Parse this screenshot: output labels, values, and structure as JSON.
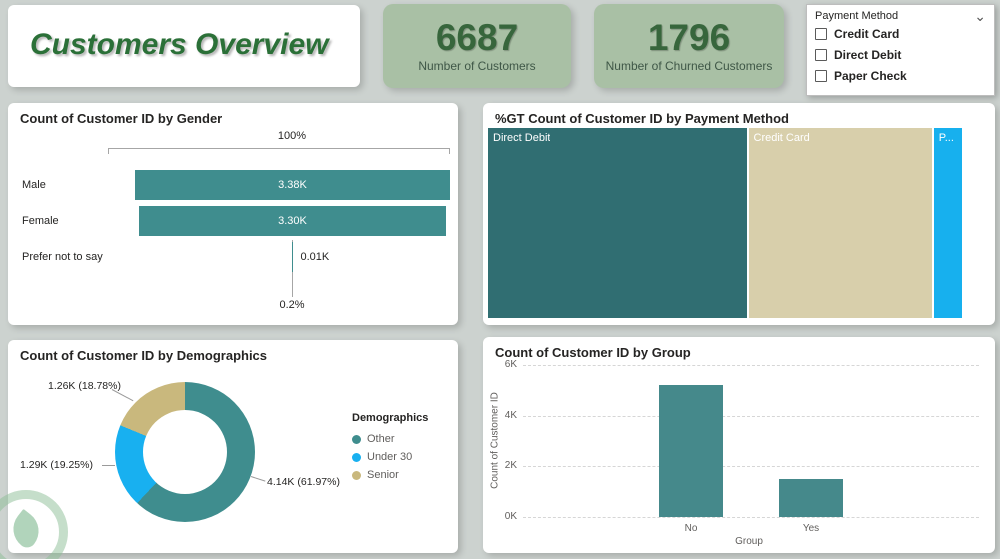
{
  "title_card": {
    "title": "Customers Overview"
  },
  "kpis": [
    {
      "value": "6687",
      "label": "Number of Customers"
    },
    {
      "value": "1796",
      "label": "Number of Churned Customers"
    }
  ],
  "slicer": {
    "title": "Payment Method",
    "options": [
      "Credit Card",
      "Direct Debit",
      "Paper Check"
    ]
  },
  "colors": {
    "teal": "#3f8d8e",
    "kpi_bg": "#a9c0a5",
    "kpi_value": "#37663c",
    "title_green": "#2b7038"
  },
  "chart_data": [
    {
      "name": "gender_funnel",
      "type": "bar",
      "subtype": "funnel",
      "title": "Count of Customer ID by Gender",
      "categories": [
        "Male",
        "Female",
        "Prefer not to say"
      ],
      "values": [
        3380,
        3300,
        10
      ],
      "value_labels": [
        "3.38K",
        "3.30K",
        "0.01K"
      ],
      "top_label": "100%",
      "bottom_label": "0.2%"
    },
    {
      "name": "payment_treemap",
      "type": "treemap",
      "title": "%GT Count of Customer ID by Payment Method",
      "blocks": [
        {
          "label": "Direct Debit",
          "share": 55,
          "color": "#306e72"
        },
        {
          "label": "Credit Card",
          "share": 39,
          "color": "#d8cfab"
        },
        {
          "label": "P...",
          "full_label": "Paper Check",
          "share": 6,
          "color": "#17b0ee"
        }
      ]
    },
    {
      "name": "demographics_donut",
      "type": "pie",
      "subtype": "donut",
      "title": "Count of Customer ID by Demographics",
      "legend_title": "Demographics",
      "legend_position": "right",
      "segments": [
        {
          "label": "Other",
          "pct": 61.97,
          "value": "4.14K",
          "callout": "4.14K (61.97%)",
          "color": "#3f8d8e"
        },
        {
          "label": "Under 30",
          "pct": 19.25,
          "value": "1.29K",
          "callout": "1.29K (19.25%)",
          "color": "#18b0f0"
        },
        {
          "label": "Senior",
          "pct": 18.78,
          "value": "1.26K",
          "callout": "1.26K (18.78%)",
          "color": "#c9b87d"
        }
      ]
    },
    {
      "name": "group_bar",
      "type": "bar",
      "title": "Count of Customer ID by Group",
      "categories": [
        "No",
        "Yes"
      ],
      "values": [
        5200,
        1500
      ],
      "ymax": 6000,
      "ticks": [
        "0K",
        "2K",
        "4K",
        "6K"
      ],
      "tick_values": [
        0,
        2000,
        4000,
        6000
      ],
      "xlabel": "Group",
      "ylabel": "Count of Customer ID",
      "bar_color": "#45898b",
      "grid": "dashed"
    }
  ]
}
